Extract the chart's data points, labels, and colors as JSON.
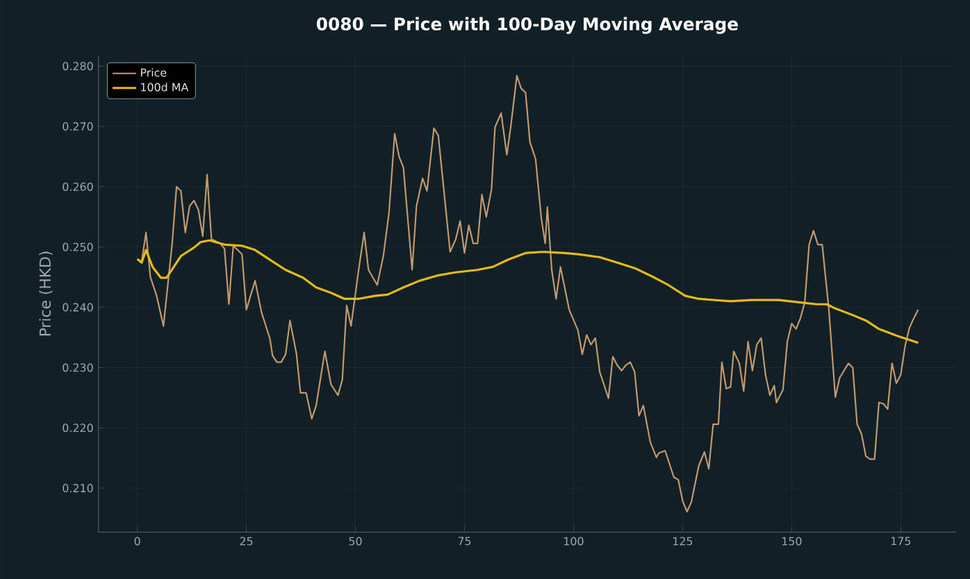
{
  "chart_data": {
    "type": "line",
    "title": "0080 — Price with 100-Day Moving Average",
    "ylabel": "Price (HKD)",
    "xlim": [
      -8.9,
      187.7
    ],
    "ylim": [
      0.2027,
      0.2818
    ],
    "xticks": [
      0,
      25,
      50,
      75,
      100,
      125,
      150,
      175
    ],
    "yticks": [
      {
        "value": 0.21,
        "label": "0.210"
      },
      {
        "value": 0.22,
        "label": "0.220"
      },
      {
        "value": 0.23,
        "label": "0.230"
      },
      {
        "value": 0.24,
        "label": "0.240"
      },
      {
        "value": 0.25,
        "label": "0.250"
      },
      {
        "value": 0.26,
        "label": "0.260"
      },
      {
        "value": 0.27,
        "label": "0.270"
      },
      {
        "value": 0.28,
        "label": "0.280"
      }
    ],
    "grid": true,
    "legend": "top left",
    "marker": "none",
    "line_style": "solid",
    "series": [
      {
        "name": "Price",
        "color": "#c49a6c",
        "x": [
          0,
          1,
          2,
          3,
          4.4,
          6,
          8,
          9,
          10,
          11,
          12,
          13,
          14,
          15,
          16,
          17,
          19,
          20,
          21,
          22,
          24,
          25,
          27,
          28.5,
          30.4,
          31,
          32,
          33,
          34,
          35,
          36.5,
          37.4,
          38.7,
          40,
          41,
          43,
          44.4,
          46,
          47,
          48,
          49,
          50.7,
          52,
          53,
          55,
          56.4,
          57.7,
          59,
          60,
          61,
          63,
          64,
          65.4,
          66.4,
          68,
          69,
          71.7,
          73,
          74,
          75,
          76,
          77,
          78,
          79,
          80,
          81.2,
          82,
          83.4,
          84.7,
          85.6,
          87,
          88,
          89,
          90,
          91.3,
          92.6,
          93.5,
          94,
          95,
          96,
          97,
          99,
          101,
          102,
          103,
          104,
          105,
          106,
          108,
          109,
          110,
          111,
          112,
          113,
          114,
          115,
          116,
          117.6,
          119,
          119.5,
          121,
          123,
          124,
          125,
          126,
          127,
          128.7,
          130,
          131,
          132,
          133.2,
          134,
          135,
          136,
          136.7,
          138,
          139,
          140,
          141,
          142,
          143,
          144,
          145,
          146,
          146.5,
          148,
          149,
          150,
          151,
          152,
          153,
          154,
          155,
          156,
          157,
          158.5,
          160,
          161,
          162,
          163,
          164,
          165,
          166,
          167,
          168,
          169,
          170,
          171,
          172,
          173,
          174,
          175,
          176,
          177,
          178,
          179
        ],
        "values": [
          0.248,
          0.2476,
          0.2524,
          0.245,
          0.242,
          0.2369,
          0.2506,
          0.26,
          0.2593,
          0.2524,
          0.2568,
          0.2577,
          0.2562,
          0.2518,
          0.262,
          0.2513,
          0.2506,
          0.2497,
          0.2405,
          0.2502,
          0.2488,
          0.2396,
          0.2444,
          0.2391,
          0.2348,
          0.232,
          0.2309,
          0.2309,
          0.2322,
          0.2378,
          0.2322,
          0.2258,
          0.2258,
          0.2215,
          0.2237,
          0.2327,
          0.2272,
          0.2254,
          0.228,
          0.2403,
          0.2369,
          0.246,
          0.2524,
          0.2462,
          0.2437,
          0.2485,
          0.2557,
          0.2688,
          0.265,
          0.2632,
          0.2462,
          0.2568,
          0.2614,
          0.2593,
          0.2697,
          0.2685,
          0.2492,
          0.2513,
          0.2543,
          0.249,
          0.2536,
          0.2506,
          0.2506,
          0.2587,
          0.255,
          0.2596,
          0.2699,
          0.2722,
          0.2653,
          0.2699,
          0.2784,
          0.2763,
          0.2756,
          0.2674,
          0.2646,
          0.2548,
          0.2506,
          0.2566,
          0.2462,
          0.2414,
          0.2467,
          0.2396,
          0.2362,
          0.2322,
          0.2354,
          0.2338,
          0.2349,
          0.2293,
          0.2249,
          0.2318,
          0.2304,
          0.2295,
          0.2304,
          0.2309,
          0.2293,
          0.222,
          0.2237,
          0.2176,
          0.2151,
          0.2158,
          0.2162,
          0.2118,
          0.2114,
          0.2079,
          0.2061,
          0.2077,
          0.2137,
          0.216,
          0.2132,
          0.2206,
          0.2206,
          0.2309,
          0.2265,
          0.2268,
          0.2327,
          0.2307,
          0.2261,
          0.2343,
          0.2295,
          0.2338,
          0.2349,
          0.2288,
          0.2254,
          0.227,
          0.2242,
          0.2263,
          0.2343,
          0.2373,
          0.2364,
          0.2382,
          0.2408,
          0.2504,
          0.2527,
          0.2504,
          0.2504,
          0.2398,
          0.2251,
          0.2283,
          0.2295,
          0.2307,
          0.23,
          0.2206,
          0.219,
          0.2153,
          0.2148,
          0.2148,
          0.2242,
          0.224,
          0.2231,
          0.2307,
          0.2274,
          0.2288,
          0.2336,
          0.2366,
          0.2382,
          0.2396
        ]
      },
      {
        "name": "100d MA",
        "color": "#e6bb18",
        "x": [
          0,
          1,
          2,
          3.5,
          5.4,
          6.7,
          9,
          10,
          13,
          14.5,
          16.5,
          20,
          24,
          27,
          31,
          34,
          38,
          41,
          44.4,
          47.5,
          50.7,
          54.5,
          57.4,
          61,
          64.7,
          69,
          73,
          78,
          81.5,
          85,
          89,
          93,
          97.7,
          101,
          106,
          110,
          114,
          118.6,
          121.7,
          125.6,
          128.7,
          136,
          140.8,
          147,
          152,
          155.7,
          158,
          160,
          164,
          167,
          170,
          174.4,
          179
        ],
        "values": [
          0.248,
          0.2474,
          0.2495,
          0.2467,
          0.2449,
          0.2449,
          0.2474,
          0.2485,
          0.2499,
          0.2508,
          0.2511,
          0.2504,
          0.2502,
          0.2495,
          0.2476,
          0.2462,
          0.2449,
          0.2433,
          0.2424,
          0.2414,
          0.2414,
          0.2419,
          0.2421,
          0.2433,
          0.2444,
          0.2453,
          0.2458,
          0.2462,
          0.2467,
          0.2479,
          0.249,
          0.2492,
          0.249,
          0.2488,
          0.2483,
          0.2474,
          0.2465,
          0.2449,
          0.2437,
          0.2419,
          0.2414,
          0.241,
          0.2412,
          0.2412,
          0.2408,
          0.2405,
          0.2405,
          0.2398,
          0.2387,
          0.2378,
          0.2364,
          0.2352,
          0.2341
        ]
      }
    ]
  }
}
